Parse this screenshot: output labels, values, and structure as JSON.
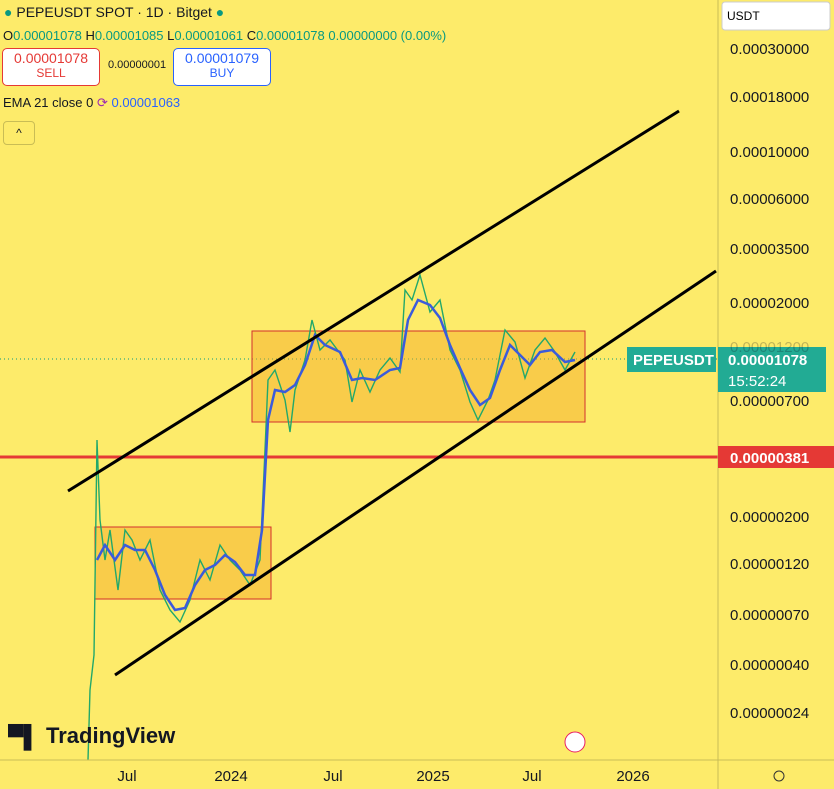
{
  "header": {
    "symbol": "PEPEUSDT SPOT · 1D · Bitget"
  },
  "ohlc": {
    "o_label": "O",
    "o": "0.00001078",
    "h_label": "H",
    "h": "0.00001085",
    "l_label": "L",
    "l": "0.00001061",
    "c_label": "C",
    "c": "0.00001078",
    "change": "0.00000000 (0.00%)"
  },
  "order": {
    "sell_price": "0.00001078",
    "sell_label": "SELL",
    "spread": "0.00000001",
    "buy_price": "0.00001079",
    "buy_label": "BUY"
  },
  "indicator": {
    "name": "EMA 21 close 0",
    "value": "0.00001063"
  },
  "currency": "USDT",
  "price_axis": [
    "0.00030000",
    "0.00018000",
    "0.00010000",
    "0.00006000",
    "0.00003500",
    "0.00002000",
    "0.00001200",
    "0.00000700",
    "0.00000200",
    "0.00000120",
    "0.00000070",
    "0.00000040",
    "0.00000024"
  ],
  "level_label": "0.00000381",
  "symbol_tag": "PEPEUSDT",
  "last_price": "0.00001078",
  "countdown": "15:52:24",
  "time_axis": [
    "Jul",
    "2024",
    "Jul",
    "2025",
    "Jul",
    "2026"
  ],
  "logo": "TradingView"
}
